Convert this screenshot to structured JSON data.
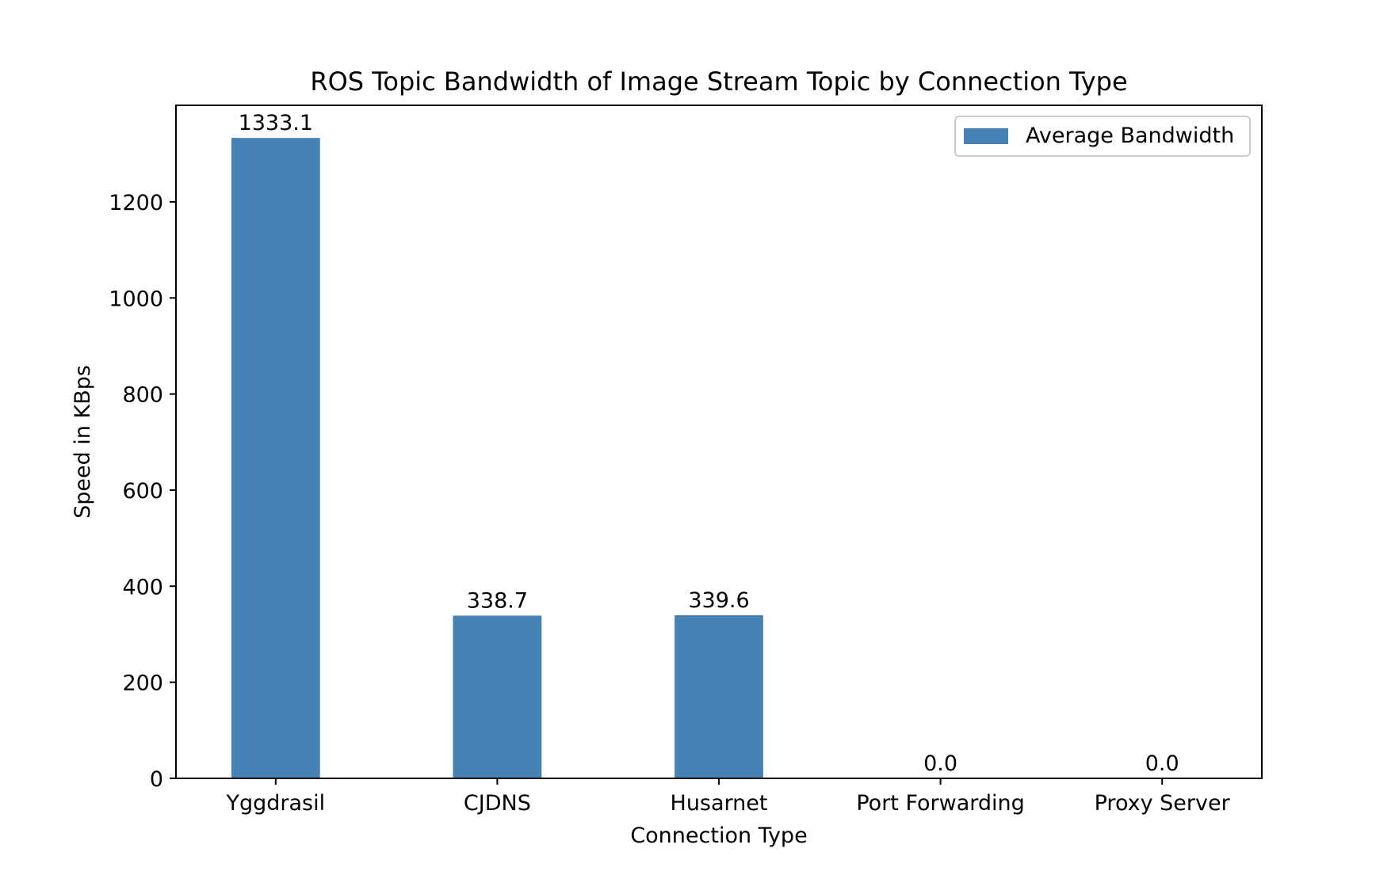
{
  "chart_data": {
    "type": "bar",
    "title": "ROS Topic Bandwidth of Image Stream Topic by Connection Type",
    "xlabel": "Connection Type",
    "ylabel": "Speed in KBps",
    "categories": [
      "Yggdrasil",
      "CJDNS",
      "Husarnet",
      "Port Forwarding",
      "Proxy Server"
    ],
    "series": [
      {
        "name": "Average Bandwidth",
        "values": [
          1333.1,
          338.7,
          339.6,
          0.0,
          0.0
        ],
        "labels": [
          "1333.1",
          "338.7",
          "339.6",
          "0.0",
          "0.0"
        ],
        "color": "#4682b4"
      }
    ],
    "ylim": [
      0,
      1400
    ],
    "yticks": [
      0,
      200,
      400,
      600,
      800,
      1000,
      1200
    ],
    "grid": false,
    "legend_position": "upper right"
  }
}
